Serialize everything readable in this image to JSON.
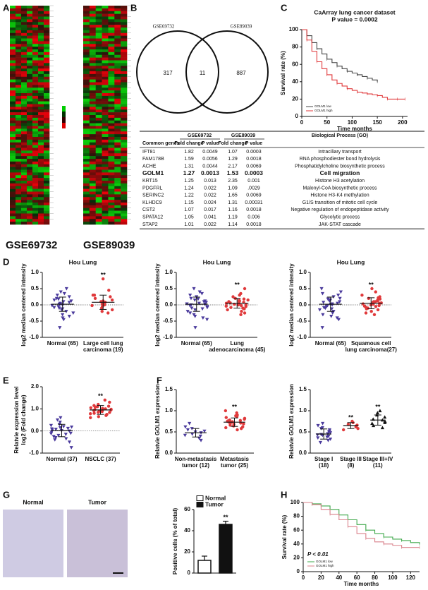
{
  "panel_labels": [
    "A",
    "B",
    "C",
    "D",
    "E",
    "F",
    "G",
    "H"
  ],
  "heatmap_labels": [
    "GSE69732",
    "GSE89039"
  ],
  "venn": {
    "sets": [
      "GSE69732",
      "GSE89039"
    ],
    "counts": [
      "317",
      "11",
      "887"
    ]
  },
  "table": {
    "groups": [
      "GSE69732",
      "GSE89039",
      "Biological Process (GO)"
    ],
    "columns": [
      "Common genes",
      "Fold change",
      "P value",
      "Fold change",
      "P value"
    ],
    "rows": [
      {
        "cells": [
          "IFT81",
          "1.82",
          "0.0049",
          "1.07",
          "0.0003",
          "Intraciliary transport"
        ]
      },
      {
        "cells": [
          "FAM178B",
          "1.59",
          "0.0056",
          "1.29",
          "0.0018",
          "RNA phosphodiester bond hydrolysis"
        ]
      },
      {
        "cells": [
          "ACHE",
          "1.31",
          "0.0044",
          "2.17",
          "0.0069",
          "Phosphatidylcholine biosynthetic process"
        ]
      },
      {
        "cells": [
          "GOLM1",
          "1.27",
          "0.0013",
          "1.53",
          "0.0003",
          "Cell migration"
        ],
        "emphasis": true
      },
      {
        "cells": [
          "KRT15",
          "1.25",
          "0.013",
          "2.35",
          "0.001",
          "Histone H3 acetylation"
        ]
      },
      {
        "cells": [
          "PDGFRL",
          "1.24",
          "0.022",
          "1.09",
          ".0029",
          "Malonyl-CoA biosynthetic process"
        ]
      },
      {
        "cells": [
          "SERINC2",
          "1.22",
          "0.022",
          "1.65",
          "0.0069",
          "Histone H3-K4 methylation"
        ]
      },
      {
        "cells": [
          "KLHDC9",
          "1.15",
          "0.024",
          "1.31",
          "0.00031",
          "G1/S transition of mitotic cell cycle"
        ]
      },
      {
        "cells": [
          "CST2",
          "1.07",
          "0.017",
          "1.16",
          "0.0018",
          "Negative regulation of endopeptidase activity"
        ]
      },
      {
        "cells": [
          "SPATA12",
          "1.05",
          "0.041",
          "1.19",
          "0.006",
          "Glycolytic process"
        ]
      },
      {
        "cells": [
          "STAP2",
          "1.01",
          "0.022",
          "1.14",
          "0.0018",
          "JAK-STAT cascade"
        ]
      }
    ]
  },
  "image_labels": [
    "Normal",
    "Tumor"
  ],
  "chart_data": [
    {
      "type": "survival",
      "title": "CaArray lung cancer dataset",
      "subtitle": "P value = 0.0002",
      "xlabel": "Time months",
      "ylabel": [
        "Survival rate (%)"
      ],
      "xlim": [
        0,
        210
      ],
      "xticks": [
        0,
        50,
        100,
        150,
        200
      ],
      "ylim": [
        0,
        100
      ],
      "yticks": [
        0,
        20,
        40,
        60,
        80,
        100
      ],
      "legend": "lower left",
      "series": [
        {
          "name": "GOLM1 low",
          "color": "#444444",
          "x": [
            0,
            10,
            20,
            30,
            40,
            50,
            60,
            70,
            80,
            90,
            100,
            110,
            120,
            130,
            140,
            150
          ],
          "values": [
            100,
            93,
            85,
            78,
            72,
            66,
            62,
            58,
            55,
            52,
            50,
            48,
            46,
            44,
            42,
            40
          ]
        },
        {
          "name": "GOLM1 high",
          "color": "#e0393b",
          "x": [
            0,
            10,
            20,
            30,
            40,
            50,
            60,
            70,
            80,
            90,
            100,
            110,
            120,
            130,
            140,
            150,
            160,
            170,
            180,
            190,
            200,
            205
          ],
          "values": [
            100,
            88,
            75,
            63,
            55,
            48,
            42,
            38,
            35,
            32,
            30,
            28,
            27,
            26,
            25,
            24,
            22,
            20,
            20,
            20,
            20,
            20
          ]
        }
      ]
    },
    {
      "type": "strip",
      "title": "Hou Lung",
      "ylabel": [
        "log2 median centered intensity"
      ],
      "zero_line": true,
      "ylim": [
        -1,
        1
      ],
      "yticks": [
        {
          "value": -1,
          "label": "-1.0"
        },
        {
          "value": -0.5,
          "label": "-0.5"
        },
        {
          "value": 0,
          "label": "0.0"
        },
        {
          "value": 0.5,
          "label": "0.5"
        },
        {
          "value": 1,
          "label": "1.0"
        }
      ],
      "categories": [
        [
          "Normal (65)"
        ],
        [
          "Large cell lung",
          "carcinoma (19)"
        ]
      ],
      "series": [
        {
          "color": "#4a3a9c",
          "marker": "triangle-down",
          "mean": 0.02,
          "sd": 0.22,
          "values": [
            -0.7,
            -0.45,
            -0.35,
            -0.3,
            -0.25,
            -0.2,
            -0.15,
            -0.12,
            -0.1,
            -0.05,
            -0.02,
            0,
            0.02,
            0.05,
            0.08,
            0.1,
            0.12,
            0.15,
            0.2,
            0.25,
            0.3,
            0.35,
            0.4,
            0.5,
            -0.4,
            0.18,
            -0.08,
            0.03
          ]
        },
        {
          "color": "#e0393b",
          "marker": "circle",
          "mean": 0.08,
          "sd": 0.22,
          "annotation": "**",
          "values": [
            0.8,
            0.45,
            0.3,
            0.25,
            0.2,
            0.15,
            0.1,
            0.08,
            0.05,
            0.02,
            0,
            -0.02,
            -0.1,
            -0.15,
            -0.2,
            -0.25,
            0.12,
            0.3,
            -0.05
          ]
        }
      ]
    },
    {
      "type": "strip",
      "title": "Hou Lung",
      "ylabel": [
        "log2 median centered intensity"
      ],
      "zero_line": true,
      "ylim": [
        -1,
        1
      ],
      "yticks": [
        {
          "value": -1,
          "label": "-1.0"
        },
        {
          "value": -0.5,
          "label": "-0.5"
        },
        {
          "value": 0,
          "label": "0.0"
        },
        {
          "value": 0.5,
          "label": "0.5"
        },
        {
          "value": 1,
          "label": "1.0"
        }
      ],
      "categories": [
        [
          "Normal (65)"
        ],
        [
          "Lung",
          "adenocarcinoma (45)"
        ]
      ],
      "series": [
        {
          "color": "#4a3a9c",
          "marker": "triangle-down",
          "mean": 0.02,
          "sd": 0.22,
          "values": [
            -0.7,
            -0.45,
            -0.35,
            -0.3,
            -0.25,
            -0.2,
            -0.15,
            -0.12,
            -0.1,
            -0.05,
            -0.02,
            0,
            0.02,
            0.05,
            0.08,
            0.1,
            0.12,
            0.15,
            0.2,
            0.25,
            0.3,
            0.35,
            0.4,
            0.5,
            -0.4,
            0.18,
            -0.08,
            0.03
          ]
        },
        {
          "color": "#e0393b",
          "marker": "circle",
          "mean": 0.05,
          "sd": 0.15,
          "annotation": "**",
          "values": [
            0.5,
            0.35,
            0.3,
            0.25,
            0.2,
            0.18,
            0.15,
            0.12,
            0.1,
            0.08,
            0.06,
            0.04,
            0.02,
            0,
            -0.02,
            -0.05,
            -0.08,
            -0.1,
            -0.12,
            -0.15,
            -0.2,
            -0.25,
            -0.3,
            0.05,
            0.1,
            0.0,
            0.14,
            -0.04
          ]
        }
      ]
    },
    {
      "type": "strip",
      "title": "Hou Lung",
      "ylabel": [
        "log2 median centered intensity"
      ],
      "zero_line": true,
      "ylim": [
        -1,
        1
      ],
      "yticks": [
        {
          "value": -1,
          "label": "-1.0"
        },
        {
          "value": -0.5,
          "label": "-0.5"
        },
        {
          "value": 0,
          "label": "0.0"
        },
        {
          "value": 0.5,
          "label": "0.5"
        },
        {
          "value": 1,
          "label": "1.0"
        }
      ],
      "categories": [
        [
          "Normal (65)"
        ],
        [
          "Squamous cell",
          "lung carcinoma(27)"
        ]
      ],
      "series": [
        {
          "color": "#4a3a9c",
          "marker": "triangle-down",
          "mean": 0.02,
          "sd": 0.22,
          "values": [
            -0.7,
            -0.45,
            -0.35,
            -0.3,
            -0.25,
            -0.2,
            -0.15,
            -0.12,
            -0.1,
            -0.05,
            -0.02,
            0,
            0.02,
            0.05,
            0.08,
            0.1,
            0.12,
            0.15,
            0.2,
            0.25,
            0.3,
            0.35,
            0.4,
            0.5,
            -0.4,
            0.18,
            -0.08,
            0.03
          ]
        },
        {
          "color": "#e0393b",
          "marker": "circle",
          "mean": 0.05,
          "sd": 0.17,
          "annotation": "**",
          "values": [
            0.5,
            0.4,
            0.3,
            0.25,
            0.2,
            0.15,
            0.12,
            0.1,
            0.08,
            0.05,
            0.03,
            0,
            -0.02,
            -0.05,
            -0.08,
            -0.1,
            -0.15,
            -0.2,
            -0.25,
            -0.3,
            0.1,
            0.02,
            -0.12,
            0.18,
            0.06,
            -0.04,
            0.22
          ]
        }
      ]
    },
    {
      "type": "strip",
      "ylabel": [
        "Relatvie expression level",
        "log2 (Fold change)"
      ],
      "zero_line": true,
      "ylim": [
        -1,
        2
      ],
      "yticks": [
        {
          "value": -1,
          "label": "-1.0"
        },
        {
          "value": 0,
          "label": "0.0"
        },
        {
          "value": 1,
          "label": "1.0"
        },
        {
          "value": 2,
          "label": "2.0"
        }
      ],
      "categories": [
        [
          "Normal (37)"
        ],
        [
          "NSCLC (37)"
        ]
      ],
      "series": [
        {
          "color": "#4a3a9c",
          "marker": "triangle-down",
          "mean": 0.02,
          "sd": 0.28,
          "values": [
            -0.75,
            -0.5,
            -0.4,
            -0.3,
            -0.25,
            -0.2,
            -0.15,
            -0.1,
            -0.05,
            0,
            0.02,
            0.05,
            0.1,
            0.15,
            0.2,
            0.25,
            0.3,
            0.4,
            0.5,
            0.6,
            -0.35,
            0.08,
            -0.12,
            0.18,
            0.12
          ]
        },
        {
          "color": "#e0393b",
          "marker": "circle",
          "mean": 0.95,
          "sd": 0.2,
          "annotation": "**",
          "values": [
            1.4,
            1.3,
            1.2,
            1.15,
            1.1,
            1.05,
            1.0,
            0.98,
            0.95,
            0.92,
            0.9,
            0.88,
            0.85,
            0.8,
            0.75,
            0.7,
            0.65,
            0.6,
            1.02,
            0.96,
            1.08,
            0.84,
            0.93,
            1.12,
            0.78
          ]
        }
      ]
    },
    {
      "type": "strip",
      "ylabel": [
        "Relatvie GOLM1 expression"
      ],
      "ylim": [
        0,
        1.5
      ],
      "yticks": [
        {
          "value": 0,
          "label": "0.0"
        },
        {
          "value": 0.5,
          "label": "0.5"
        },
        {
          "value": 1,
          "label": "1.0"
        },
        {
          "value": 1.5,
          "label": "1.5"
        }
      ],
      "categories": [
        [
          "Non-metastasis",
          "tumor (12)"
        ],
        [
          "Metastasis",
          "tumor (25)"
        ]
      ],
      "series": [
        {
          "color": "#4a3a9c",
          "marker": "triangle-down",
          "mean": 0.48,
          "sd": 0.1,
          "values": [
            0.3,
            0.35,
            0.4,
            0.42,
            0.45,
            0.48,
            0.5,
            0.52,
            0.55,
            0.58,
            0.62,
            0.7
          ]
        },
        {
          "color": "#e0393b",
          "marker": "circle",
          "mean": 0.73,
          "sd": 0.1,
          "annotation": "**",
          "values": [
            0.55,
            0.58,
            0.6,
            0.62,
            0.64,
            0.66,
            0.68,
            0.7,
            0.71,
            0.72,
            0.73,
            0.74,
            0.75,
            0.76,
            0.78,
            0.8,
            0.82,
            0.84,
            0.86,
            0.88,
            0.9,
            0.95,
            1.0,
            0.69,
            0.77
          ]
        }
      ]
    },
    {
      "type": "strip",
      "ylabel": [
        "Relatvie GOLM1 expression"
      ],
      "ylim": [
        0,
        1.5
      ],
      "yticks": [
        {
          "value": 0,
          "label": "0.0"
        },
        {
          "value": 0.5,
          "label": "0.5"
        },
        {
          "value": 1,
          "label": "1.0"
        },
        {
          "value": 1.5,
          "label": "1.5"
        }
      ],
      "categories": [
        [
          "Stage I",
          "(18)"
        ],
        [
          "Stage III",
          "(8)"
        ],
        [
          "Stage III+IV",
          "(11)"
        ]
      ],
      "series": [
        {
          "color": "#4a3a9c",
          "marker": "triangle-down",
          "mean": 0.45,
          "sd": 0.12,
          "values": [
            0.25,
            0.3,
            0.33,
            0.36,
            0.38,
            0.4,
            0.42,
            0.44,
            0.46,
            0.48,
            0.5,
            0.52,
            0.55,
            0.58,
            0.6,
            0.65,
            0.7,
            0.43
          ]
        },
        {
          "color": "#e0393b",
          "marker": "circle",
          "mean": 0.65,
          "sd": 0.07,
          "annotation": "**",
          "values": [
            0.55,
            0.58,
            0.62,
            0.64,
            0.66,
            0.68,
            0.72,
            0.75
          ]
        },
        {
          "color": "#111111",
          "marker": "triangle",
          "mean": 0.78,
          "sd": 0.12,
          "annotation": "**",
          "values": [
            0.6,
            0.65,
            0.7,
            0.72,
            0.75,
            0.78,
            0.8,
            0.85,
            0.9,
            0.95,
            1.0
          ]
        }
      ]
    },
    {
      "type": "bar",
      "ylabel": [
        "Positive cells (% of total)"
      ],
      "legend": "upper left",
      "ylim": [
        0,
        60
      ],
      "yticks": [
        0,
        20,
        40,
        60
      ],
      "series": [
        {
          "name": "Normal",
          "color": "#ffffff",
          "values": [
            12
          ],
          "errors": [
            4
          ]
        },
        {
          "name": "Tumor",
          "color": "#111111",
          "values": [
            46
          ],
          "errors": [
            3
          ],
          "annotation": "**"
        }
      ]
    },
    {
      "type": "survival",
      "annotation": "P < 0.01",
      "xlabel": "Time months",
      "ylabel": [
        "Survival rate (%)"
      ],
      "xlim": [
        0,
        130
      ],
      "xticks": [
        0,
        20,
        40,
        60,
        80,
        100,
        120
      ],
      "ylim": [
        0,
        100
      ],
      "yticks": [
        0,
        20,
        40,
        60,
        80,
        100
      ],
      "legend": "lower left",
      "series": [
        {
          "name": "GOLM1 low",
          "color": "#3ea84a",
          "x": [
            0,
            10,
            20,
            30,
            40,
            50,
            60,
            70,
            80,
            90,
            100,
            110,
            120,
            130
          ],
          "values": [
            100,
            98,
            95,
            90,
            82,
            75,
            68,
            60,
            55,
            50,
            47,
            45,
            42,
            40
          ]
        },
        {
          "name": "GOLM1 high",
          "color": "#d9808a",
          "x": [
            0,
            10,
            20,
            30,
            40,
            50,
            60,
            70,
            80,
            90,
            100,
            110,
            120,
            130
          ],
          "values": [
            100,
            97,
            90,
            83,
            75,
            65,
            55,
            48,
            43,
            40,
            38,
            35,
            35,
            35
          ]
        }
      ]
    }
  ]
}
